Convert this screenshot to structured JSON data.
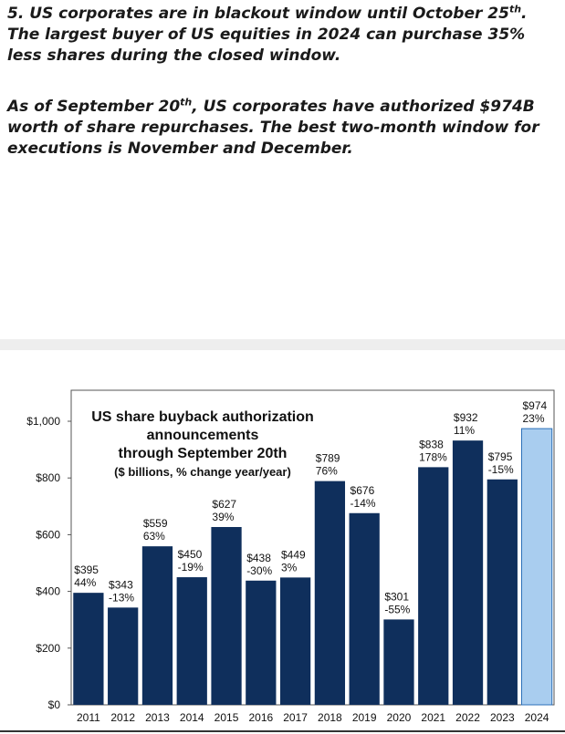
{
  "text": {
    "p1_a": "5. US corporates are in blackout window until October 25",
    "p1_sup": "th",
    "p1_b": ". The largest buyer of US equities in 2024 can purchase 35% less shares during the closed window.",
    "p2_a": "As of September 20",
    "p2_sup": "th",
    "p2_b": ", US corporates have authorized $974B worth of share repurchases. The best two-month window for executions is November and December."
  },
  "chart_data": {
    "type": "bar",
    "title_lines": [
      "US share buyback authorization",
      "announcements",
      "through September 20th",
      "($ billions, % change year/year)"
    ],
    "categories": [
      "2011",
      "2012",
      "2013",
      "2014",
      "2015",
      "2016",
      "2017",
      "2018",
      "2019",
      "2020",
      "2021",
      "2022",
      "2023",
      "2024"
    ],
    "values": [
      395,
      343,
      559,
      450,
      627,
      438,
      449,
      789,
      676,
      301,
      838,
      932,
      795,
      974
    ],
    "value_labels": [
      "$395",
      "$343",
      "$559",
      "$450",
      "$627",
      "$438",
      "$449",
      "$789",
      "$676",
      "$301",
      "$838",
      "$932",
      "$795",
      "$974"
    ],
    "pct_labels": [
      "44%",
      "-13%",
      "63%",
      "-19%",
      "39%",
      "-30%",
      "3%",
      "76%",
      "-14%",
      "-55%",
      "178%",
      "11%",
      "-15%",
      "23%"
    ],
    "ylim": [
      0,
      1000
    ],
    "yticks": [
      0,
      200,
      400,
      600,
      800,
      1000
    ],
    "ytick_labels": [
      "$0",
      "$200",
      "$400",
      "$600",
      "$800",
      "$1,000"
    ],
    "bar_color": "#0f2f5c",
    "highlight_color": "#a9cdef",
    "highlight_index": 13,
    "xlabel": "",
    "ylabel": "",
    "grid": false
  }
}
